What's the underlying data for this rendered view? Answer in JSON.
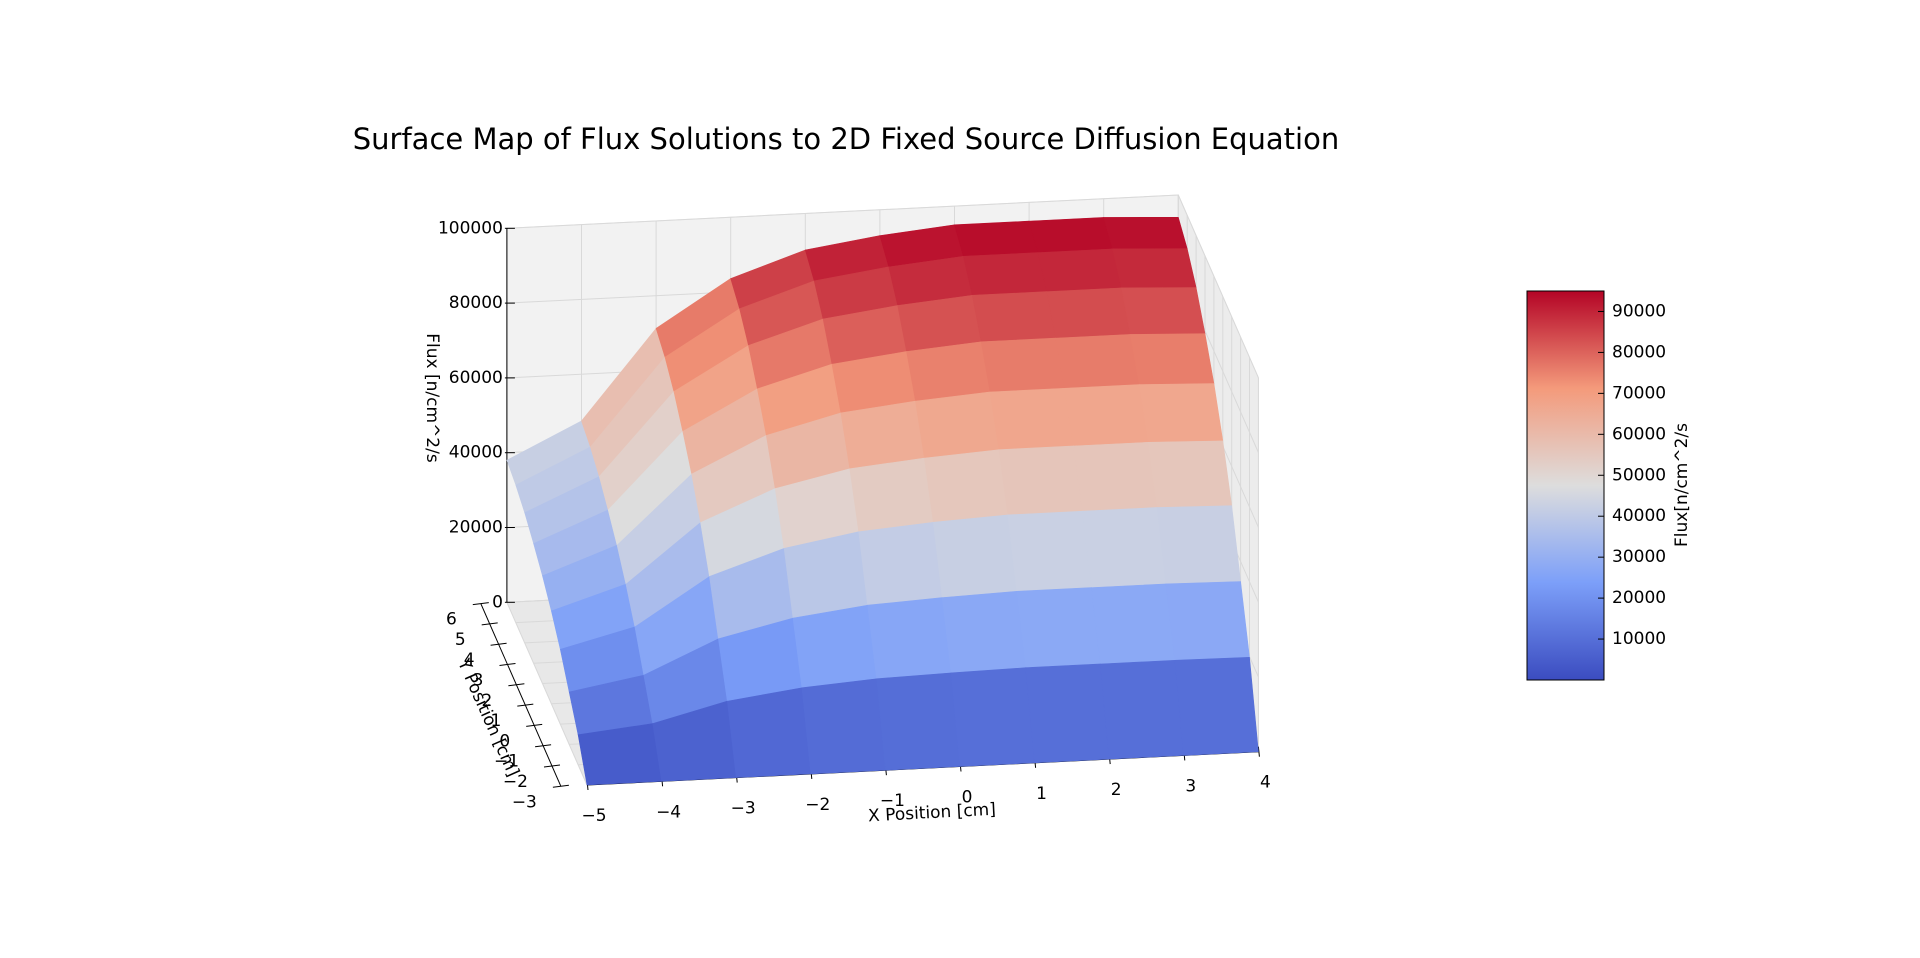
{
  "chart_data": {
    "type": "surface",
    "title": "Surface Map of Flux Solutions to 2D Fixed Source Diffusion Equation",
    "xlabel": "X Position [cm]",
    "ylabel": "Y Position [cm]",
    "zlabel": "Flux [n/cm^2/s",
    "x": [
      -5,
      -4,
      -3,
      -2,
      -1,
      0,
      1,
      2,
      3,
      4
    ],
    "y": [
      -3,
      -2,
      -1,
      0,
      1,
      2,
      3,
      4,
      5,
      6
    ],
    "z": [
      [
        0,
        0,
        0,
        0,
        0,
        0,
        0,
        0,
        0,
        0
      ],
      [
        8000,
        10000,
        15000,
        17600,
        19000,
        19600,
        20000,
        20000,
        20000,
        19800
      ],
      [
        14000,
        17500,
        26250,
        30800,
        33250,
        34300,
        35000,
        35000,
        35000,
        34650
      ],
      [
        20000,
        25000,
        37500,
        44000,
        47500,
        49000,
        50000,
        50000,
        50000,
        49500
      ],
      [
        24800,
        31000,
        46500,
        54560,
        58900,
        60760,
        62000,
        62000,
        62000,
        61380
      ],
      [
        28800,
        36000,
        54000,
        63360,
        68400,
        70560,
        72000,
        72000,
        72000,
        71280
      ],
      [
        32000,
        40000,
        60000,
        70400,
        76000,
        78400,
        80000,
        80000,
        80000,
        79200
      ],
      [
        34800,
        43500,
        65250,
        76560,
        82650,
        85260,
        87000,
        87000,
        87000,
        86130
      ],
      [
        36800,
        46000,
        69000,
        80960,
        87400,
        90160,
        92000,
        92000,
        92000,
        91080
      ],
      [
        38000,
        47500,
        71250,
        83600,
        90250,
        93100,
        95000,
        95000,
        95000,
        94050
      ]
    ],
    "xlim": [
      -5,
      4
    ],
    "ylim": [
      -3,
      6
    ],
    "zlim": [
      0,
      100000
    ],
    "xticks": [
      {
        "value": -5,
        "label": "−5"
      },
      {
        "value": -4,
        "label": "−4"
      },
      {
        "value": -3,
        "label": "−3"
      },
      {
        "value": -2,
        "label": "−2"
      },
      {
        "value": -1,
        "label": "−1"
      },
      0,
      1,
      2,
      3,
      4
    ],
    "yticks": [
      {
        "value": -3,
        "label": "−3"
      },
      {
        "value": -2,
        "label": "−2"
      },
      {
        "value": -1,
        "label": "−1"
      },
      0,
      1,
      2,
      3,
      4,
      5,
      6
    ],
    "zticks": [
      0,
      20000,
      40000,
      60000,
      80000,
      100000
    ],
    "grid": true,
    "colorbar": {
      "label": "Flux[n/cm^2/s",
      "colormap": "coolwarm",
      "lim": [
        0,
        95000
      ],
      "ticks": [
        10000,
        20000,
        30000,
        40000,
        50000,
        60000,
        70000,
        80000,
        90000
      ]
    }
  }
}
